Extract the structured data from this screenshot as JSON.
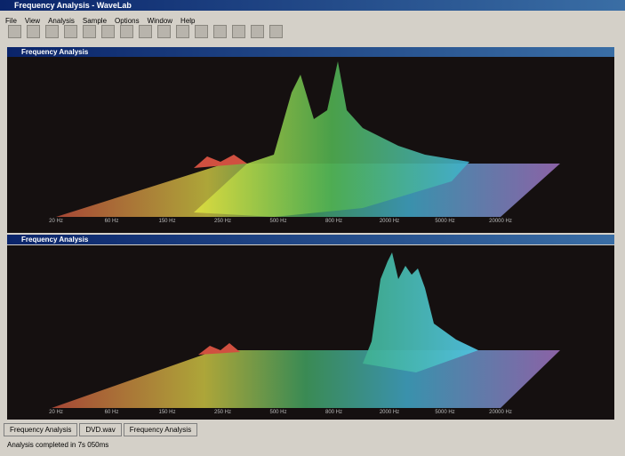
{
  "window": {
    "title": "Frequency Analysis - WaveLab",
    "menu": [
      "File",
      "View",
      "Analysis",
      "Sample",
      "Options",
      "Window",
      "Help"
    ]
  },
  "panes": [
    {
      "title": "Frequency Analysis",
      "x_labels": [
        "20 Hz",
        "60 Hz",
        "150 Hz",
        "250 Hz",
        "500 Hz",
        "800 Hz",
        "2000 Hz",
        "5000 Hz",
        "20000 Hz"
      ]
    },
    {
      "title": "Frequency Analysis",
      "x_labels": [
        "20 Hz",
        "60 Hz",
        "150 Hz",
        "250 Hz",
        "500 Hz",
        "800 Hz",
        "2000 Hz",
        "5000 Hz",
        "20000 Hz"
      ]
    }
  ],
  "tabs": [
    "Frequency Analysis",
    "DVD.wav",
    "Frequency Analysis"
  ],
  "status": "Analysis completed in 7s 050ms"
}
